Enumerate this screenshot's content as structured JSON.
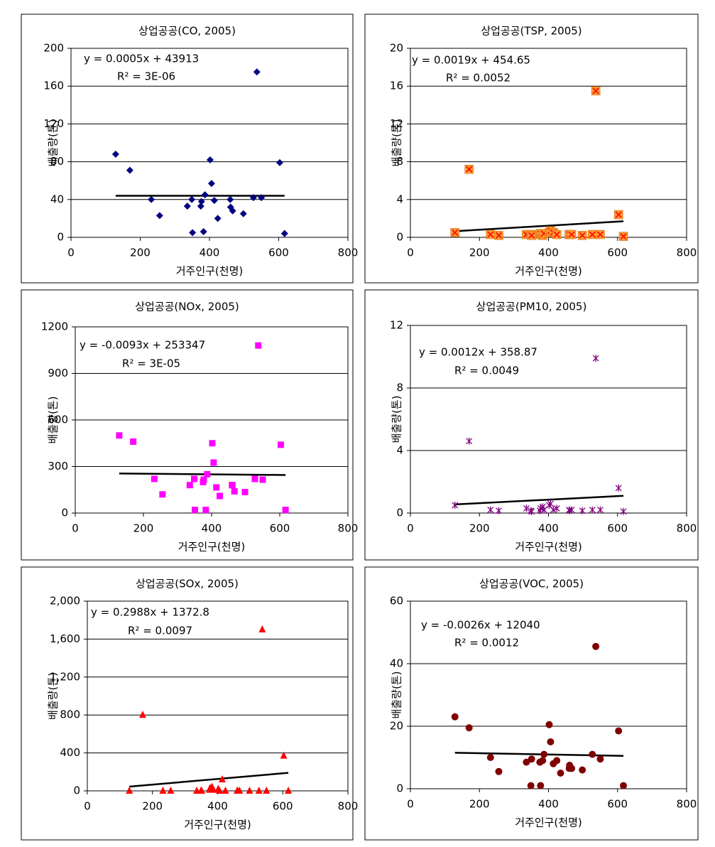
{
  "chart_data": [
    {
      "type": "scatter",
      "title": "상업공공(CO, 2005)",
      "x_label": "거주인구(천명)",
      "y_label": "배출량(톤)",
      "equation": "y = 0.0005x + 43913",
      "r_squared": "R² = 3E-06",
      "marker": "diamond",
      "color": "#000080",
      "x": [
        129,
        170,
        232,
        256,
        336,
        349,
        351,
        375,
        377,
        383,
        387,
        402,
        406,
        414,
        424,
        460,
        461,
        467,
        498,
        527,
        537,
        550,
        603,
        617
      ],
      "y": [
        88,
        71,
        40,
        23,
        33,
        40,
        5,
        33,
        38,
        6,
        45,
        82,
        57,
        39,
        20,
        40,
        32,
        28,
        25,
        42,
        175,
        42,
        79,
        4
      ],
      "trendline": {
        "x": [
          129,
          617
        ],
        "y": [
          44,
          44
        ]
      },
      "xlim": [
        0,
        800
      ],
      "xticks": [
        0,
        200,
        400,
        600,
        800
      ],
      "ylim": [
        0,
        200
      ],
      "yticks": [
        0,
        40,
        80,
        120,
        160,
        200
      ]
    },
    {
      "type": "scatter",
      "title": "상업공공(TSP, 2005)",
      "x_label": "거주인구(천명)",
      "y_label": "배출량(톤)",
      "equation": "y = 0.0019x + 454.65",
      "r_squared": "R² = 0.0052",
      "marker": "square-x",
      "color": "#ff9933",
      "x": [
        129,
        170,
        232,
        256,
        336,
        349,
        351,
        375,
        377,
        383,
        387,
        402,
        406,
        414,
        424,
        460,
        461,
        467,
        498,
        527,
        537,
        550,
        603,
        617
      ],
      "y": [
        0.5,
        7.2,
        0.3,
        0.2,
        0.3,
        0.3,
        0.2,
        0.3,
        0.4,
        0.2,
        0.4,
        0.5,
        0.7,
        0.5,
        0.3,
        0.3,
        0.3,
        0.3,
        0.2,
        0.3,
        15.5,
        0.3,
        2.4,
        0.1
      ],
      "trendline": {
        "x": [
          129,
          617
        ],
        "y": [
          0.65,
          1.7
        ]
      },
      "xlim": [
        0,
        800
      ],
      "xticks": [
        0,
        200,
        400,
        600,
        800
      ],
      "ylim": [
        0,
        20
      ],
      "yticks": [
        0,
        4,
        8,
        12,
        16,
        20
      ]
    },
    {
      "type": "scatter",
      "title": "상업공공(NOx, 2005)",
      "x_label": "거주인구(천명)",
      "y_label": "배출량(톤)",
      "equation": "y = -0.0093x + 253347",
      "r_squared": "R² = 3E-05",
      "marker": "square",
      "color": "#ff00ff",
      "x": [
        129,
        170,
        232,
        256,
        336,
        349,
        351,
        375,
        377,
        383,
        387,
        402,
        406,
        414,
        424,
        460,
        461,
        467,
        498,
        527,
        537,
        550,
        603,
        617
      ],
      "y": [
        500,
        460,
        220,
        120,
        180,
        220,
        20,
        200,
        215,
        20,
        250,
        450,
        325,
        165,
        110,
        180,
        180,
        140,
        135,
        220,
        1080,
        215,
        440,
        20
      ],
      "trendline": {
        "x": [
          129,
          617
        ],
        "y": [
          255,
          245
        ]
      },
      "xlim": [
        0,
        800
      ],
      "xticks": [
        0,
        200,
        400,
        600,
        800
      ],
      "ylim": [
        0,
        1200
      ],
      "yticks": [
        0,
        300,
        600,
        900,
        1200
      ]
    },
    {
      "type": "scatter",
      "title": "상업공공(PM10, 2005)",
      "x_label": "거주인구(천명)",
      "y_label": "배출량(톤)",
      "equation": "y = 0.0012x + 358.87",
      "r_squared": "R² = 0.0049",
      "marker": "asterisk",
      "color": "#800080",
      "x": [
        129,
        170,
        232,
        256,
        336,
        349,
        351,
        375,
        377,
        383,
        387,
        402,
        406,
        414,
        424,
        460,
        461,
        467,
        498,
        527,
        537,
        550,
        603,
        617
      ],
      "y": [
        0.5,
        4.6,
        0.2,
        0.15,
        0.3,
        0.15,
        0.1,
        0.15,
        0.3,
        0.4,
        0.2,
        0.5,
        0.6,
        0.2,
        0.3,
        0.2,
        0.15,
        0.2,
        0.15,
        0.2,
        9.9,
        0.2,
        1.6,
        0.1
      ],
      "trendline": {
        "x": [
          129,
          617
        ],
        "y": [
          0.55,
          1.1
        ]
      },
      "xlim": [
        0,
        800
      ],
      "xticks": [
        0,
        200,
        400,
        600,
        800
      ],
      "ylim": [
        0,
        12
      ],
      "yticks": [
        0,
        4,
        8,
        12
      ]
    },
    {
      "type": "scatter",
      "title": "상업공공(SOx, 2005)",
      "x_label": "거주인구(천명)",
      "y_label": "배출량(톤)",
      "equation": "y = 0.2988x + 1372.8",
      "r_squared": "R² = 0.0097",
      "marker": "triangle",
      "color": "#ff0000",
      "x": [
        129,
        170,
        232,
        256,
        336,
        349,
        351,
        375,
        377,
        383,
        387,
        402,
        406,
        414,
        424,
        460,
        461,
        467,
        498,
        527,
        537,
        550,
        603,
        617
      ],
      "y": [
        0,
        800,
        0,
        0,
        0,
        0,
        0,
        10,
        30,
        40,
        10,
        20,
        0,
        120,
        0,
        0,
        0,
        0,
        0,
        0,
        1700,
        0,
        370,
        0
      ],
      "trendline": {
        "x": [
          129,
          617
        ],
        "y": [
          45,
          190
        ]
      },
      "xlim": [
        0,
        800
      ],
      "xticks": [
        0,
        200,
        400,
        600,
        800
      ],
      "ylim": [
        0,
        2000
      ],
      "yticks": [
        0,
        400,
        800,
        {
          "value": 1200,
          "label": "1,200"
        },
        {
          "value": 1600,
          "label": "1,600"
        },
        {
          "value": 2000,
          "label": "2,000"
        }
      ]
    },
    {
      "type": "scatter",
      "title": "상업공공(VOC, 2005)",
      "x_label": "거주인구(천명)",
      "y_label": "배출량(톤)",
      "equation": "y = -0.0026x + 12040",
      "r_squared": "R² = 0.0012",
      "marker": "circle",
      "color": "#800000",
      "x": [
        129,
        170,
        232,
        256,
        336,
        349,
        351,
        375,
        377,
        383,
        387,
        402,
        406,
        414,
        424,
        435,
        460,
        461,
        467,
        498,
        527,
        537,
        550,
        603,
        617
      ],
      "y": [
        23,
        19.5,
        10,
        5.5,
        8.5,
        1,
        9.5,
        8.5,
        1,
        9,
        11,
        20.5,
        15,
        8,
        9,
        5,
        6.5,
        7.5,
        6.5,
        6,
        11,
        45.5,
        9.5,
        18.5,
        1
      ],
      "trendline": {
        "x": [
          129,
          617
        ],
        "y": [
          11.5,
          10.5
        ]
      },
      "xlim": [
        0,
        800
      ],
      "xticks": [
        0,
        200,
        400,
        600,
        800
      ],
      "ylim": [
        0,
        60
      ],
      "yticks": [
        0,
        20,
        40,
        60
      ]
    }
  ]
}
